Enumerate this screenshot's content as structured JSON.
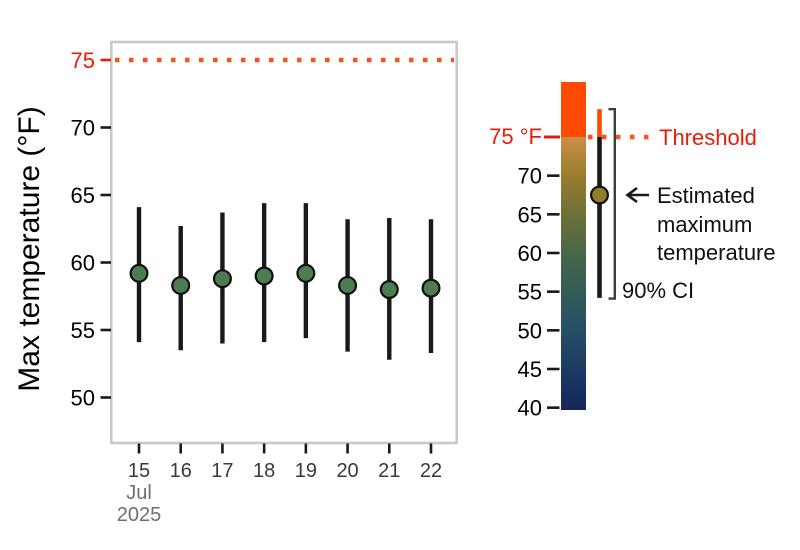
{
  "chart_data": {
    "type": "scatter",
    "title": "",
    "x": [
      "15",
      "16",
      "17",
      "18",
      "19",
      "20",
      "21",
      "22"
    ],
    "x_month": "Jul",
    "x_year": "2025",
    "xlabel": "",
    "ylabel": "Max temperature (°F)",
    "y_ticks": [
      75,
      70,
      65,
      60,
      55,
      50
    ],
    "ylim": [
      46.6,
      76.3
    ],
    "grid": false,
    "legend_position": "right",
    "series": [
      {
        "name": "Estimated maximum temperature",
        "values": [
          59.2,
          58.3,
          58.8,
          59.0,
          59.2,
          58.3,
          58.0,
          58.1
        ]
      },
      {
        "name": "90% CI lower",
        "values": [
          54.1,
          53.5,
          54.0,
          54.1,
          54.4,
          53.4,
          52.8,
          53.3
        ]
      },
      {
        "name": "90% CI upper",
        "values": [
          64.1,
          62.7,
          63.7,
          64.4,
          64.4,
          63.2,
          63.3,
          63.2
        ]
      }
    ],
    "threshold": {
      "value": 75,
      "label": "Threshold",
      "unit": "°F"
    }
  },
  "legend": {
    "threshold_tick_label": "75 °F",
    "threshold_label": "Threshold",
    "estimated_label_lines": [
      "Estimated",
      "maximum",
      "temperature"
    ],
    "ci_label": "90% CI",
    "example": {
      "mean": 67.5,
      "lo": 54.2,
      "hi": 78.6
    },
    "colorbar": {
      "ticks": [
        70,
        65,
        60,
        55,
        50,
        45,
        40
      ],
      "domain": [
        39.7,
        82.1
      ],
      "gradient_stops": [
        {
          "pct": 0,
          "color": "#fe4a02"
        },
        {
          "pct": 16.8,
          "color": "#fe4a02"
        },
        {
          "pct": 16.81,
          "color": "#c98f44"
        },
        {
          "pct": 28.6,
          "color": "#9a7c2d"
        },
        {
          "pct": 40.3,
          "color": "#6e7138"
        },
        {
          "pct": 52.1,
          "color": "#496747"
        },
        {
          "pct": 63.9,
          "color": "#325d57"
        },
        {
          "pct": 75.7,
          "color": "#274e66"
        },
        {
          "pct": 87.5,
          "color": "#1d3a64"
        },
        {
          "pct": 100,
          "color": "#142759"
        }
      ]
    }
  },
  "colors": {
    "point_fill": "#4d7c51",
    "legend_point_fill": "#8f7f29",
    "errorbar": "#191919",
    "threshold_dot": "#fb5120",
    "red_text": "#ea1b0b",
    "orange_block": "#fe4a02",
    "panel_border": "#c9c9c9",
    "axis_tick": "#1a1a1a",
    "x_tick_text": "#3a3a3a",
    "secondary_text": "#6f6f6f",
    "bracket": "#3d3d3d"
  }
}
